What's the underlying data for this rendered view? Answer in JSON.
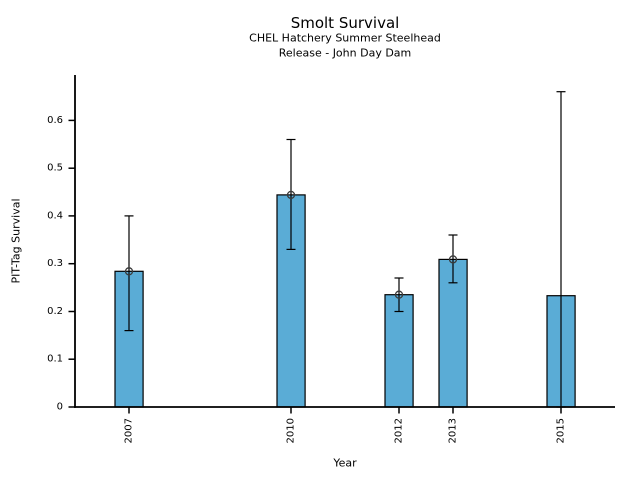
{
  "chart_data": {
    "type": "bar",
    "title": "Smolt Survival",
    "subtitle_line1": "CHEL Hatchery Summer Steelhead",
    "subtitle_line2": "Release - John Day Dam",
    "xlabel": "Year",
    "ylabel": "PIT-Tag Survival",
    "categories": [
      "2007",
      "2010",
      "2012",
      "2013",
      "2015"
    ],
    "x_years": [
      2007,
      2010,
      2012,
      2013,
      2015
    ],
    "values": [
      0.284,
      0.444,
      0.235,
      0.309,
      0.233
    ],
    "ci_low": [
      0.16,
      0.33,
      0.2,
      0.26,
      0.0
    ],
    "ci_high": [
      0.4,
      0.56,
      0.27,
      0.36,
      0.66
    ],
    "marker_shown": [
      true,
      true,
      true,
      true,
      false
    ],
    "xlim": [
      2006,
      2016
    ],
    "ylim": [
      0,
      0.695
    ],
    "yticks": [
      0,
      0.1,
      0.2,
      0.3,
      0.4,
      0.5,
      0.6
    ],
    "ytick_labels": [
      "0",
      "0.1",
      "0.2",
      "0.3",
      "0.4",
      "0.5",
      "0.6"
    ],
    "grid": false,
    "legend": false,
    "bar_width_years": 0.52,
    "colors": {
      "bar_fill": "#5AACD6",
      "bar_edge": "#000000",
      "error_bar": "#000000",
      "marker_edge": "#3a3a3a",
      "axis": "#000000",
      "text": "#000000",
      "background": "#FFFFFF"
    }
  }
}
